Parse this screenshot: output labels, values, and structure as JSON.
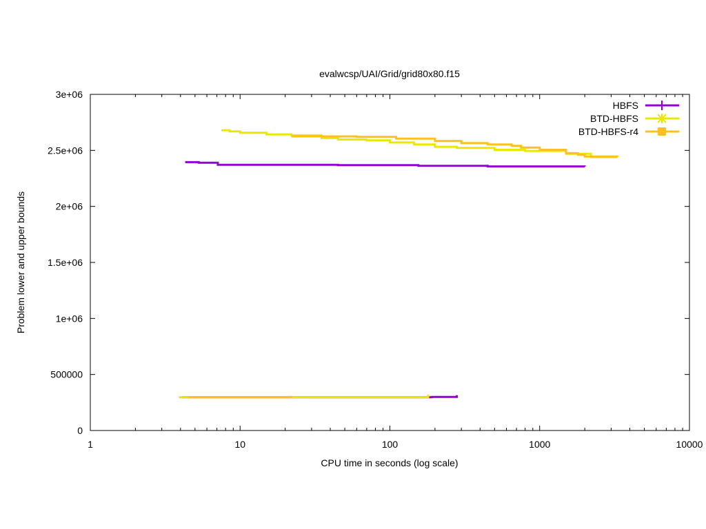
{
  "chart_data": {
    "type": "line",
    "title": "evalwcsp/UAI/Grid/grid80x80.f15",
    "xlabel": "CPU time in seconds (log scale)",
    "ylabel": "Problem lower and upper bounds",
    "xscale": "log",
    "xlim": [
      1,
      10000
    ],
    "ylim": [
      0,
      3000000
    ],
    "x_ticks": [
      {
        "value": 1,
        "label": "1"
      },
      {
        "value": 10,
        "label": "10"
      },
      {
        "value": 100,
        "label": "100"
      },
      {
        "value": 1000,
        "label": "1000"
      },
      {
        "value": 10000,
        "label": "10000"
      }
    ],
    "y_ticks": [
      {
        "value": 0,
        "label": "0"
      },
      {
        "value": 500000,
        "label": "500000"
      },
      {
        "value": 1000000,
        "label": "1e+06"
      },
      {
        "value": 1500000,
        "label": "1.5e+06"
      },
      {
        "value": 2000000,
        "label": "2e+06"
      },
      {
        "value": 2500000,
        "label": "2.5e+06"
      },
      {
        "value": 3000000,
        "label": "3e+06"
      }
    ],
    "legend_position": "top-right",
    "grid": false,
    "series": [
      {
        "name": "HBFS",
        "color": "#9400d3",
        "marker": "plus",
        "upper": [
          [
            4.3,
            2395000
          ],
          [
            5.3,
            2390000
          ],
          [
            7.1,
            2372000
          ],
          [
            45,
            2368000
          ],
          [
            155,
            2362000
          ],
          [
            450,
            2357000
          ],
          [
            2000,
            2355000
          ]
        ],
        "lower": [
          [
            4.1,
            297000
          ],
          [
            190,
            300000
          ],
          [
            280,
            300000
          ],
          [
            280,
            315000
          ]
        ]
      },
      {
        "name": "BTD-HBFS",
        "color": "#e8e800",
        "marker": "star",
        "upper": [
          [
            7.5,
            2680000
          ],
          [
            8.5,
            2670000
          ],
          [
            10,
            2657000
          ],
          [
            15,
            2643000
          ],
          [
            22,
            2635000
          ],
          [
            35,
            2610000
          ],
          [
            45,
            2597000
          ],
          [
            70,
            2590000
          ],
          [
            100,
            2570000
          ],
          [
            145,
            2553000
          ],
          [
            200,
            2532000
          ],
          [
            280,
            2522000
          ],
          [
            500,
            2505000
          ],
          [
            800,
            2495000
          ],
          [
            1500,
            2470000
          ],
          [
            2200,
            2440000
          ],
          [
            3300,
            2440000
          ]
        ],
        "lower": [
          [
            3.9,
            297000
          ],
          [
            180,
            300000
          ],
          [
            180,
            320000
          ]
        ]
      },
      {
        "name": "BTD-HBFS-r4",
        "color": "#ffc020",
        "marker": "square",
        "upper": [
          [
            22,
            2625000
          ],
          [
            60,
            2620000
          ],
          [
            110,
            2605000
          ],
          [
            200,
            2583000
          ],
          [
            300,
            2565000
          ],
          [
            450,
            2553000
          ],
          [
            650,
            2540000
          ],
          [
            750,
            2525000
          ],
          [
            1000,
            2505000
          ],
          [
            1500,
            2475000
          ],
          [
            1800,
            2460000
          ],
          [
            2000,
            2445000
          ],
          [
            3300,
            2440000
          ]
        ],
        "lower": [
          [
            4.5,
            297000
          ],
          [
            21.5,
            300000
          ],
          [
            22,
            305000
          ]
        ]
      }
    ]
  }
}
